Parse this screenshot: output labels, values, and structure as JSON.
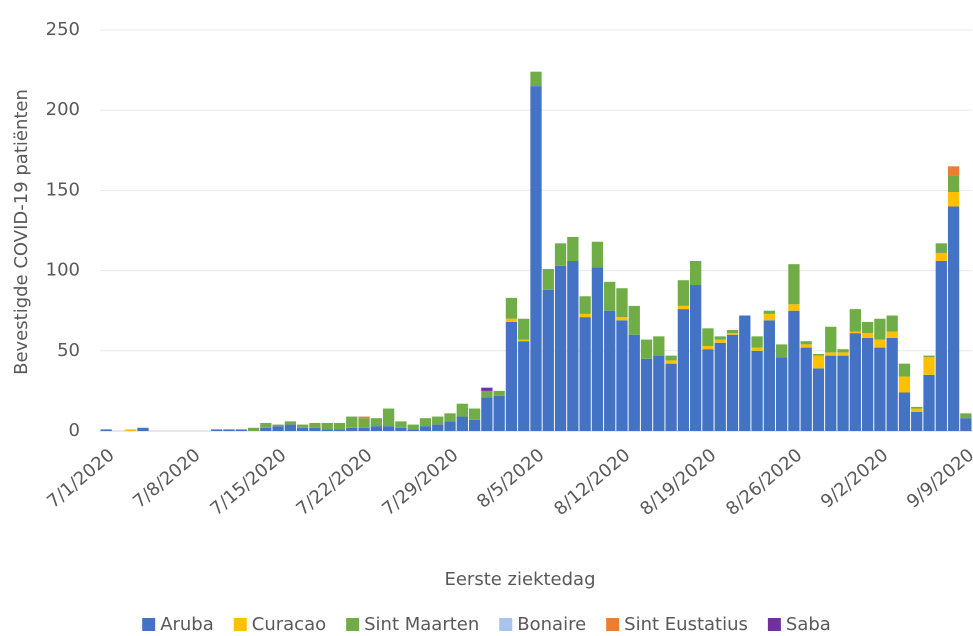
{
  "chart_data": {
    "type": "stacked-bar",
    "x_label": "Eerste ziektedag",
    "y_label": "Bevestigde COVID-19 patiënten",
    "categories": [
      "7/1/2020",
      null,
      null,
      null,
      null,
      null,
      null,
      "7/8/2020",
      null,
      null,
      null,
      null,
      null,
      null,
      "7/15/2020",
      null,
      null,
      null,
      null,
      null,
      null,
      "7/22/2020",
      null,
      null,
      null,
      null,
      null,
      null,
      "7/29/2020",
      null,
      null,
      null,
      null,
      null,
      null,
      "8/5/2020",
      null,
      null,
      null,
      null,
      null,
      null,
      "8/12/2020",
      null,
      null,
      null,
      null,
      null,
      null,
      "8/19/2020",
      null,
      null,
      null,
      null,
      null,
      null,
      "8/26/2020",
      null,
      null,
      null,
      null,
      null,
      null,
      "9/2/2020",
      null,
      null,
      null,
      null,
      null,
      null,
      "9/9/2020"
    ],
    "series": [
      {
        "name": "Aruba",
        "color": "#4472c4",
        "values": [
          1,
          0,
          0,
          2,
          0,
          0,
          0,
          0,
          0,
          1,
          1,
          1,
          0,
          2,
          3,
          4,
          2,
          2,
          1,
          1,
          2,
          2,
          3,
          3,
          2,
          1,
          3,
          4,
          6,
          9,
          7,
          21,
          22,
          68,
          56,
          215,
          88,
          103,
          106,
          71,
          102,
          75,
          69,
          60,
          45,
          47,
          42,
          76,
          91,
          51,
          55,
          60,
          72,
          50,
          69,
          46,
          75,
          52,
          39,
          47,
          47,
          61,
          58,
          52,
          58,
          24,
          12,
          35,
          106,
          140,
          8
        ]
      },
      {
        "name": "Curacao",
        "color": "#ffc000",
        "values": [
          0,
          0,
          1,
          0,
          0,
          0,
          0,
          0,
          0,
          0,
          0,
          0,
          0,
          0,
          0,
          0,
          0,
          0,
          0,
          0,
          0,
          0,
          0,
          0,
          0,
          0,
          0,
          0,
          0,
          0,
          0,
          0,
          0,
          2,
          1,
          0,
          0,
          0,
          0,
          2,
          0,
          0,
          2,
          0,
          0,
          0,
          2,
          2,
          0,
          2,
          2,
          1,
          0,
          2,
          4,
          0,
          4,
          2,
          8,
          2,
          2,
          1,
          3,
          5,
          4,
          10,
          2,
          11,
          5,
          9,
          0
        ]
      },
      {
        "name": "Sint Maarten",
        "color": "#70ad47",
        "values": [
          0,
          0,
          0,
          0,
          0,
          0,
          0,
          0,
          0,
          0,
          0,
          0,
          2,
          3,
          1,
          2,
          2,
          3,
          4,
          4,
          7,
          6,
          5,
          11,
          4,
          3,
          5,
          5,
          5,
          8,
          7,
          4,
          3,
          13,
          13,
          9,
          13,
          14,
          15,
          11,
          16,
          18,
          18,
          18,
          12,
          12,
          3,
          16,
          15,
          11,
          2,
          2,
          0,
          7,
          2,
          8,
          25,
          2,
          1,
          16,
          2,
          14,
          7,
          13,
          10,
          8,
          1,
          1,
          6,
          10,
          3
        ]
      },
      {
        "name": "Bonaire",
        "color": "#a9c4eb",
        "values": [
          0,
          0,
          0,
          0,
          0,
          0,
          0,
          0,
          0,
          0,
          0,
          0,
          0,
          0,
          0,
          0,
          0,
          0,
          0,
          0,
          0,
          0,
          0,
          0,
          0,
          0,
          0,
          0,
          0,
          0,
          0,
          0,
          0,
          0,
          0,
          0,
          0,
          0,
          0,
          0,
          0,
          0,
          0,
          0,
          0,
          0,
          0,
          0,
          0,
          0,
          0,
          0,
          0,
          0,
          0,
          0,
          0,
          0,
          0,
          0,
          0,
          0,
          0,
          0,
          0,
          0,
          0,
          0,
          0,
          0,
          0
        ]
      },
      {
        "name": "Sint Eustatius",
        "color": "#ed7d31",
        "values": [
          0,
          0,
          0,
          0,
          0,
          0,
          0,
          0,
          0,
          0,
          0,
          0,
          0,
          0,
          0,
          0,
          0,
          0,
          0,
          0,
          0,
          1,
          0,
          0,
          0,
          0,
          0,
          0,
          0,
          0,
          0,
          0,
          0,
          0,
          0,
          0,
          0,
          0,
          0,
          0,
          0,
          0,
          0,
          0,
          0,
          0,
          0,
          0,
          0,
          0,
          0,
          0,
          0,
          0,
          0,
          0,
          0,
          0,
          0,
          0,
          0,
          0,
          0,
          0,
          0,
          0,
          0,
          0,
          0,
          6,
          0
        ]
      },
      {
        "name": "Saba",
        "color": "#7030a0",
        "values": [
          0,
          0,
          0,
          0,
          0,
          0,
          0,
          0,
          0,
          0,
          0,
          0,
          0,
          0,
          0,
          0,
          0,
          0,
          0,
          0,
          0,
          0,
          0,
          0,
          0,
          0,
          0,
          0,
          0,
          0,
          0,
          2,
          0,
          0,
          0,
          0,
          0,
          0,
          0,
          0,
          0,
          0,
          0,
          0,
          0,
          0,
          0,
          0,
          0,
          0,
          0,
          0,
          0,
          0,
          0,
          0,
          0,
          0,
          0,
          0,
          0,
          0,
          0,
          0,
          0,
          0,
          0,
          0,
          0,
          0,
          0
        ]
      }
    ],
    "ylim": [
      0,
      250
    ],
    "yticks": [
      0,
      50,
      100,
      150,
      200,
      250
    ],
    "grid": true,
    "legend": "bottom"
  }
}
